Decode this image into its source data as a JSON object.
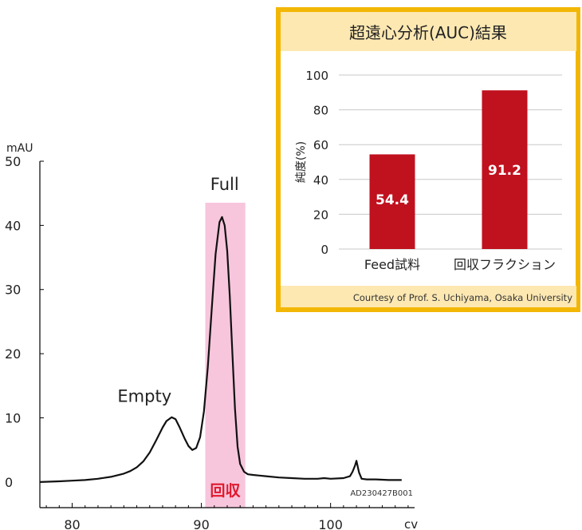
{
  "chart_data": [
    {
      "type": "line",
      "title": "",
      "xlabel": "cv",
      "ylabel": "mAU",
      "xlim": [
        77.5,
        106.5
      ],
      "ylim": [
        -4,
        50
      ],
      "x_ticks": [
        80,
        90,
        100
      ],
      "y_ticks": [
        0,
        10,
        20,
        30,
        40,
        50
      ],
      "grid": false,
      "series": [
        {
          "x": [
            77.5,
            79,
            80,
            81,
            82,
            83,
            84,
            84.5,
            85,
            85.5,
            86,
            86.5,
            87,
            87.3,
            87.7,
            88,
            88.3,
            88.7,
            89,
            89.3,
            89.6,
            89.9,
            90.2,
            90.5,
            90.8,
            91.1,
            91.4,
            91.6,
            91.8,
            92,
            92.2,
            92.4,
            92.6,
            92.8,
            93,
            93.3,
            93.6,
            94,
            94.5,
            95,
            96,
            97,
            98,
            99,
            99.5,
            100,
            101,
            101.5,
            101.7,
            101.9,
            102,
            102.2,
            102.4,
            102.8,
            103.5,
            104.5,
            105.5
          ],
          "y": [
            0,
            0.1,
            0.2,
            0.3,
            0.5,
            0.8,
            1.3,
            1.7,
            2.3,
            3.2,
            4.6,
            6.5,
            8.5,
            9.5,
            10.1,
            9.8,
            8.6,
            6.8,
            5.6,
            5.0,
            5.3,
            7.0,
            11.0,
            18.0,
            27.0,
            35.5,
            40.5,
            41.3,
            40.0,
            36.0,
            29.0,
            20.0,
            11.5,
            5.5,
            2.8,
            1.6,
            1.2,
            1.1,
            1.0,
            0.9,
            0.7,
            0.6,
            0.5,
            0.5,
            0.6,
            0.5,
            0.6,
            0.9,
            1.6,
            2.6,
            3.3,
            1.5,
            0.5,
            0.4,
            0.4,
            0.3,
            0.3
          ]
        }
      ],
      "annotations": [
        {
          "text": "Empty",
          "x": 85.6,
          "y": 12.5
        },
        {
          "text": "Full",
          "x": 91.8,
          "y": 45.5
        }
      ],
      "highlight": {
        "x_range": [
          90.3,
          93.4
        ],
        "label": "回収",
        "color": "#f7c6dc",
        "label_color": "#e0182d"
      },
      "footnote": "AD230427B001"
    },
    {
      "type": "bar",
      "title": "超遠心分析(AUC)結果",
      "xlabel": "",
      "ylabel": "純度(%)",
      "categories": [
        "Feed試料",
        "回収フラクション"
      ],
      "values": [
        54.4,
        91.2
      ],
      "value_labels": [
        "54.4",
        "91.2"
      ],
      "ylim": [
        0,
        100
      ],
      "y_ticks": [
        0,
        20,
        40,
        60,
        80,
        100
      ],
      "grid": true,
      "bar_color": "#c0111e",
      "credit": "Courtesy of Prof. S. Uchiyama, Osaka University"
    }
  ],
  "colors": {
    "panel_border": "#f2b705",
    "panel_header": "#fde8b2",
    "line": "#111111"
  }
}
